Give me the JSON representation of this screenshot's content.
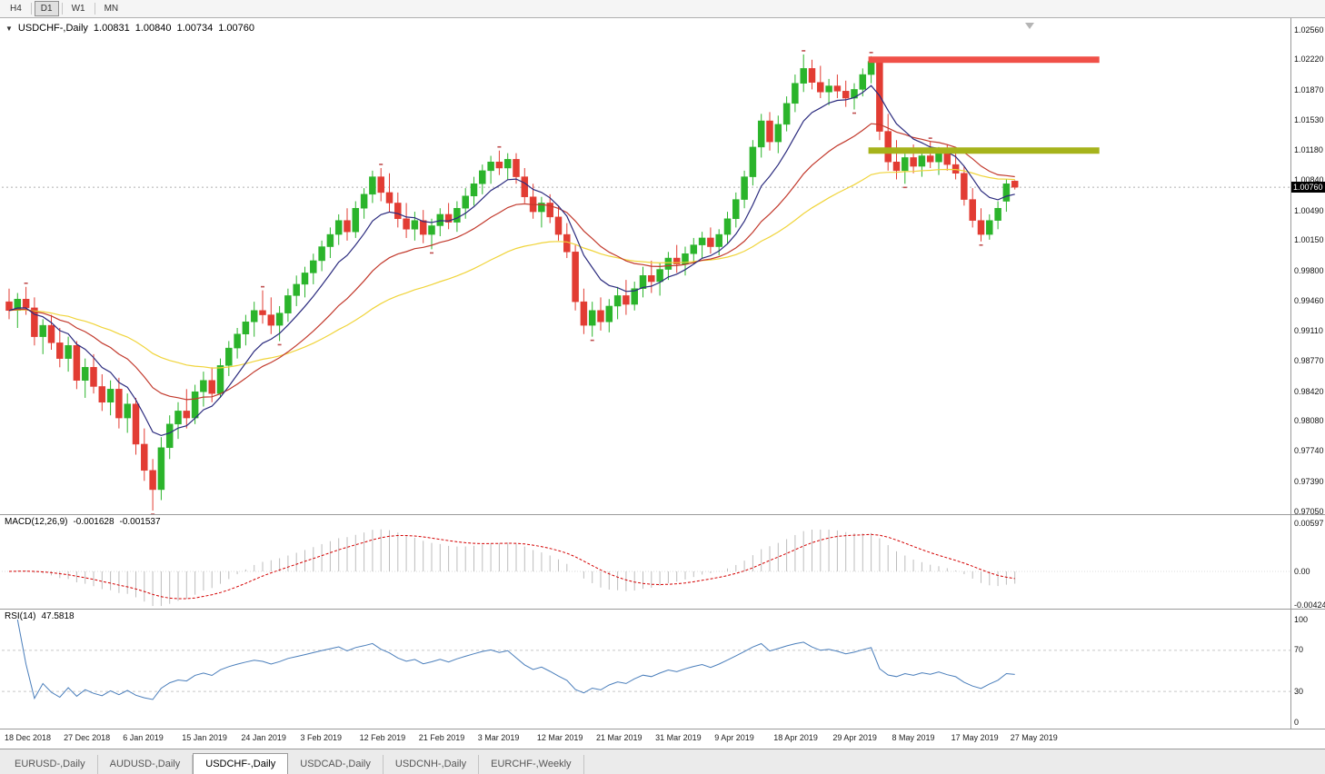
{
  "icons": {
    "collapse": "▼"
  },
  "colors": {
    "up": "#2bb42b",
    "down": "#e23c33",
    "ma_fast": "#2b2b7e",
    "ma_mid": "#c2392c",
    "ma_slow": "#f0d43a",
    "macd_hist": "#bdbdbd",
    "macd_signal": "#d40000",
    "rsi": "#4a7ebb",
    "resistance": "#f05048",
    "support": "#a6b31b",
    "price_line": "#b0b0b0",
    "price_tag_bg": "#000000"
  },
  "toolbar": {
    "periods": [
      {
        "label": "H4",
        "active": false
      },
      {
        "label": "D1",
        "active": true
      },
      {
        "label": "W1",
        "active": false
      },
      {
        "label": "MN",
        "active": false
      }
    ]
  },
  "chart": {
    "header": {
      "symbol": "USDCHF-,Daily",
      "open": "1.00831",
      "high": "1.00840",
      "low": "1.00734",
      "close": "1.00760"
    },
    "current_price": "1.00760",
    "price_scale": {
      "min": 0.9705,
      "max": 1.0256,
      "labels": [
        "1.02560",
        "1.02220",
        "1.01870",
        "1.01530",
        "1.01180",
        "1.00840",
        "1.00490",
        "1.00150",
        "0.99800",
        "0.99460",
        "0.99110",
        "0.98770",
        "0.98420",
        "0.98080",
        "0.97740",
        "0.97390",
        "0.97050"
      ]
    },
    "levels": [
      {
        "name": "resistance-line",
        "price": 1.0222,
        "from_index": 102,
        "to_index": 129,
        "color_key": "resistance",
        "thickness": 7
      },
      {
        "name": "support-line",
        "price": 1.0118,
        "from_index": 102,
        "to_index": 129,
        "color_key": "support",
        "thickness": 7
      }
    ],
    "moving_averages": [
      {
        "period": 45,
        "color_key": "ma_slow"
      },
      {
        "period": 20,
        "color_key": "ma_mid"
      },
      {
        "period": 8,
        "color_key": "ma_fast"
      }
    ]
  },
  "chart_data": {
    "type": "candlestick",
    "symbol": "USDCHF",
    "timeframe": "Daily",
    "label_every": 7,
    "date_labels": [
      "18 Dec 2018",
      "27 Dec 2018",
      "6 Jan 2019",
      "15 Jan 2019",
      "24 Jan 2019",
      "3 Feb 2019",
      "12 Feb 2019",
      "21 Feb 2019",
      "3 Mar 2019",
      "12 Mar 2019",
      "21 Mar 2019",
      "31 Mar 2019",
      "9 Apr 2019",
      "18 Apr 2019",
      "29 Apr 2019",
      "8 May 2019",
      "17 May 2019",
      "27 May 2019"
    ],
    "candles": [
      [
        0.9945,
        0.996,
        0.9925,
        0.9935
      ],
      [
        0.9935,
        0.9955,
        0.9915,
        0.9948
      ],
      [
        0.9948,
        0.9962,
        0.993,
        0.9938
      ],
      [
        0.9938,
        0.995,
        0.9895,
        0.9905
      ],
      [
        0.9905,
        0.9925,
        0.9885,
        0.9918
      ],
      [
        0.9918,
        0.993,
        0.989,
        0.9898
      ],
      [
        0.9898,
        0.9915,
        0.987,
        0.988
      ],
      [
        0.988,
        0.9905,
        0.9865,
        0.9895
      ],
      [
        0.9895,
        0.99,
        0.9845,
        0.9855
      ],
      [
        0.9855,
        0.988,
        0.9835,
        0.987
      ],
      [
        0.987,
        0.9885,
        0.984,
        0.9848
      ],
      [
        0.9848,
        0.9862,
        0.982,
        0.983
      ],
      [
        0.983,
        0.9855,
        0.9815,
        0.9845
      ],
      [
        0.9845,
        0.9858,
        0.98,
        0.9812
      ],
      [
        0.9812,
        0.984,
        0.9795,
        0.9828
      ],
      [
        0.9828,
        0.9835,
        0.977,
        0.9782
      ],
      [
        0.9782,
        0.98,
        0.974,
        0.9752
      ],
      [
        0.9752,
        0.9765,
        0.9706,
        0.973
      ],
      [
        0.973,
        0.979,
        0.9718,
        0.9778
      ],
      [
        0.9778,
        0.9815,
        0.9765,
        0.9805
      ],
      [
        0.9805,
        0.983,
        0.9788,
        0.982
      ],
      [
        0.982,
        0.9845,
        0.98,
        0.9812
      ],
      [
        0.9812,
        0.985,
        0.9805,
        0.9842
      ],
      [
        0.9842,
        0.9865,
        0.9825,
        0.9855
      ],
      [
        0.9855,
        0.987,
        0.983,
        0.984
      ],
      [
        0.984,
        0.988,
        0.9835,
        0.9872
      ],
      [
        0.9872,
        0.99,
        0.986,
        0.9892
      ],
      [
        0.9892,
        0.9915,
        0.988,
        0.9908
      ],
      [
        0.9908,
        0.993,
        0.9895,
        0.9922
      ],
      [
        0.9922,
        0.9945,
        0.9905,
        0.9935
      ],
      [
        0.9935,
        0.9958,
        0.992,
        0.993
      ],
      [
        0.993,
        0.995,
        0.9908,
        0.9918
      ],
      [
        0.9918,
        0.994,
        0.99,
        0.9932
      ],
      [
        0.9932,
        0.996,
        0.9922,
        0.9952
      ],
      [
        0.9952,
        0.9975,
        0.994,
        0.9965
      ],
      [
        0.9965,
        0.9985,
        0.995,
        0.9978
      ],
      [
        0.9978,
        1.0,
        0.9965,
        0.9992
      ],
      [
        0.9992,
        1.0015,
        0.998,
        1.0008
      ],
      [
        1.0008,
        1.003,
        0.9995,
        1.0022
      ],
      [
        1.0022,
        1.0045,
        1.001,
        1.0038
      ],
      [
        1.0038,
        1.0052,
        1.0015,
        1.0025
      ],
      [
        1.0025,
        1.006,
        1.0018,
        1.0052
      ],
      [
        1.0052,
        1.0075,
        1.004,
        1.0068
      ],
      [
        1.0068,
        1.0095,
        1.0058,
        1.0088
      ],
      [
        1.0088,
        1.0098,
        1.006,
        1.007
      ],
      [
        1.007,
        1.0092,
        1.0048,
        1.0058
      ],
      [
        1.0058,
        1.007,
        1.003,
        1.004
      ],
      [
        1.004,
        1.0058,
        1.0018,
        1.0028
      ],
      [
        1.0028,
        1.0048,
        1.0015,
        1.0038
      ],
      [
        1.0038,
        1.005,
        1.0012,
        1.0022
      ],
      [
        1.0022,
        1.004,
        1.0005,
        1.0032
      ],
      [
        1.0032,
        1.0052,
        1.002,
        1.0045
      ],
      [
        1.0045,
        1.0058,
        1.0028,
        1.0036
      ],
      [
        1.0036,
        1.006,
        1.0025,
        1.0052
      ],
      [
        1.0052,
        1.0075,
        1.004,
        1.0066
      ],
      [
        1.0066,
        1.0088,
        1.0055,
        1.008
      ],
      [
        1.008,
        1.0102,
        1.0068,
        1.0095
      ],
      [
        1.0095,
        1.0112,
        1.008,
        1.0105
      ],
      [
        1.0105,
        1.0118,
        1.009,
        1.0098
      ],
      [
        1.0098,
        1.0115,
        1.0085,
        1.0108
      ],
      [
        1.0108,
        1.0115,
        1.008,
        1.0088
      ],
      [
        1.0088,
        1.0098,
        1.0058,
        1.0065
      ],
      [
        1.0065,
        1.008,
        1.004,
        1.0048
      ],
      [
        1.0048,
        1.0065,
        1.003,
        1.0058
      ],
      [
        1.0058,
        1.0068,
        1.0035,
        1.0042
      ],
      [
        1.0042,
        1.0055,
        1.0015,
        1.0022
      ],
      [
        1.0022,
        1.0035,
        0.9995,
        1.0002
      ],
      [
        1.0002,
        1.001,
        0.9935,
        0.9945
      ],
      [
        0.9945,
        0.996,
        0.9908,
        0.9918
      ],
      [
        0.9918,
        0.9945,
        0.9905,
        0.9935
      ],
      [
        0.9935,
        0.995,
        0.9912,
        0.9922
      ],
      [
        0.9922,
        0.9948,
        0.991,
        0.994
      ],
      [
        0.994,
        0.9962,
        0.9925,
        0.9952
      ],
      [
        0.9952,
        0.997,
        0.993,
        0.9942
      ],
      [
        0.9942,
        0.9968,
        0.9935,
        0.996
      ],
      [
        0.996,
        0.9985,
        0.995,
        0.9975
      ],
      [
        0.9975,
        0.9992,
        0.9955,
        0.9968
      ],
      [
        0.9968,
        0.999,
        0.9952,
        0.9982
      ],
      [
        0.9982,
        1.0002,
        0.997,
        0.9995
      ],
      [
        0.9995,
        1.001,
        0.9978,
        0.9988
      ],
      [
        0.9988,
        1.0008,
        0.9975,
        1.0
      ],
      [
        1.0,
        1.0018,
        0.9988,
        1.001
      ],
      [
        1.001,
        1.0025,
        0.9995,
        1.0018
      ],
      [
        1.0018,
        1.003,
        1.0,
        1.0008
      ],
      [
        1.0008,
        1.0028,
        0.9998,
        1.0022
      ],
      [
        1.0022,
        1.0048,
        1.0012,
        1.004
      ],
      [
        1.004,
        1.007,
        1.003,
        1.0062
      ],
      [
        1.0062,
        1.0095,
        1.0052,
        1.0088
      ],
      [
        1.0088,
        1.013,
        1.0078,
        1.0122
      ],
      [
        1.0122,
        1.016,
        1.011,
        1.0152
      ],
      [
        1.0152,
        1.0162,
        1.0118,
        1.0128
      ],
      [
        1.0128,
        1.0158,
        1.0115,
        1.0148
      ],
      [
        1.0148,
        1.018,
        1.014,
        1.0172
      ],
      [
        1.0172,
        1.0205,
        1.0162,
        1.0195
      ],
      [
        1.0195,
        1.0228,
        1.0185,
        1.0212
      ],
      [
        1.0212,
        1.0222,
        1.0188,
        1.0196
      ],
      [
        1.0196,
        1.0215,
        1.0178,
        1.0185
      ],
      [
        1.0185,
        1.02,
        1.017,
        1.0192
      ],
      [
        1.0192,
        1.0205,
        1.0178,
        1.0186
      ],
      [
        1.0186,
        1.0198,
        1.0168,
        1.0178
      ],
      [
        1.0178,
        1.0195,
        1.0165,
        1.0188
      ],
      [
        1.0188,
        1.0212,
        1.018,
        1.0205
      ],
      [
        1.0205,
        1.0226,
        1.0195,
        1.022
      ],
      [
        1.022,
        1.0225,
        1.013,
        1.014
      ],
      [
        1.014,
        1.016,
        1.0095,
        1.0105
      ],
      [
        1.0105,
        1.013,
        1.0085,
        1.0095
      ],
      [
        1.0095,
        1.0118,
        1.008,
        1.011
      ],
      [
        1.011,
        1.0125,
        1.0092,
        1.01
      ],
      [
        1.01,
        1.012,
        1.0088,
        1.0112
      ],
      [
        1.0112,
        1.0128,
        1.0098,
        1.0105
      ],
      [
        1.0105,
        1.0122,
        1.009,
        1.0115
      ],
      [
        1.0115,
        1.0125,
        1.0095,
        1.0102
      ],
      [
        1.0102,
        1.0118,
        1.0085,
        1.0092
      ],
      [
        1.0092,
        1.01,
        1.0055,
        1.0062
      ],
      [
        1.0062,
        1.0075,
        1.003,
        1.0038
      ],
      [
        1.0038,
        1.0052,
        1.0014,
        1.0022
      ],
      [
        1.0022,
        1.0045,
        1.0016,
        1.0038
      ],
      [
        1.0038,
        1.006,
        1.0028,
        1.0052
      ],
      [
        1.006,
        1.0085,
        1.0048,
        1.008
      ],
      [
        1.00831,
        1.0084,
        1.00734,
        1.0076
      ]
    ]
  },
  "indicators": {
    "macd": {
      "label": "MACD(12,26,9)",
      "value_main": "-0.001628",
      "value_signal": "-0.001537",
      "fast": 12,
      "slow": 26,
      "signal": 9,
      "scale": [
        "0.00597",
        "0.00",
        "-0.00424"
      ]
    },
    "rsi": {
      "label": "RSI(14)",
      "value": "47.5818",
      "period": 14,
      "levels": [
        70,
        30
      ],
      "scale": [
        "100",
        "70",
        "30",
        "0"
      ]
    },
    "fractals": {
      "window": 2,
      "color": "#c05050"
    }
  },
  "tabs": [
    {
      "label": "EURUSD-,Daily",
      "active": false
    },
    {
      "label": "AUDUSD-,Daily",
      "active": false
    },
    {
      "label": "USDCHF-,Daily",
      "active": true
    },
    {
      "label": "USDCAD-,Daily",
      "active": false
    },
    {
      "label": "USDCNH-,Daily",
      "active": false
    },
    {
      "label": "EURCHF-,Weekly",
      "active": false
    }
  ]
}
